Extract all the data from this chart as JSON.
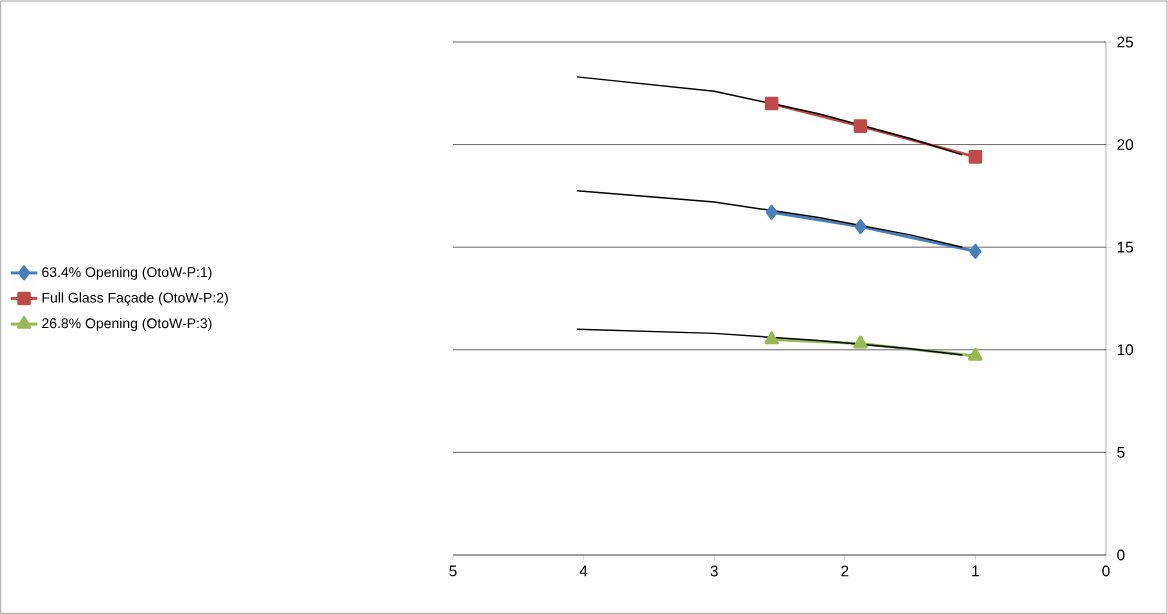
{
  "chart_data": {
    "type": "line",
    "xlim": [
      5,
      0
    ],
    "ylim": [
      0,
      25
    ],
    "xticks": [
      5,
      4,
      3,
      2,
      1,
      0
    ],
    "yticks": [
      0,
      5,
      10,
      15,
      20,
      25
    ],
    "grid": "y",
    "legend": "left",
    "series": [
      {
        "name": "63.4%  Opening   (OtoW-P:1)",
        "color": "#4a7ebb",
        "marker": "diamond",
        "x": [
          2.56,
          1.88,
          1.0
        ],
        "values": [
          16.7,
          16.0,
          14.8
        ]
      },
      {
        "name": "Full Glass Façade (OtoW-P:2)",
        "color": "#be4b48",
        "marker": "square",
        "x": [
          2.56,
          1.88,
          1.0
        ],
        "values": [
          22.0,
          20.9,
          19.4
        ]
      },
      {
        "name": "26.8% Opening   (OtoW-P:3)",
        "color": "#98b954",
        "marker": "triangle",
        "x": [
          2.56,
          1.88,
          1.0
        ],
        "values": [
          10.5,
          10.3,
          9.7
        ]
      },
      {
        "color": "#000000",
        "marker": "none",
        "x": [
          4.05,
          3,
          2.2,
          1.5,
          1.1
        ],
        "values": [
          23.3,
          22.6,
          21.5,
          20.3,
          19.5
        ]
      },
      {
        "color": "#000000",
        "marker": "none",
        "x": [
          4.05,
          3,
          2.2,
          1.5,
          1.1
        ],
        "values": [
          17.75,
          17.2,
          16.45,
          15.6,
          15.0
        ]
      },
      {
        "color": "#000000",
        "marker": "none",
        "x": [
          4.05,
          3,
          2.2,
          1.5,
          1.1
        ],
        "values": [
          11.0,
          10.8,
          10.45,
          10.05,
          9.75
        ]
      }
    ]
  }
}
